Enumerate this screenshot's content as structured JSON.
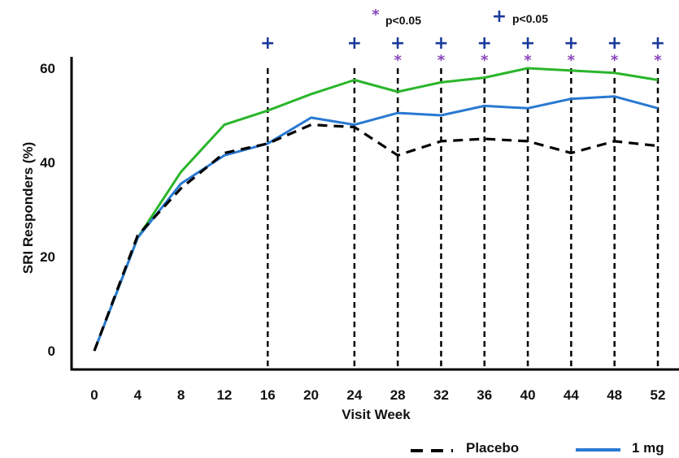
{
  "chart_data": {
    "type": "line",
    "xlabel": "Visit Week",
    "ylabel": "SRI Responders (%)",
    "x": [
      0,
      4,
      8,
      12,
      16,
      20,
      24,
      28,
      32,
      36,
      40,
      44,
      48,
      52
    ],
    "ylim": [
      0,
      60
    ],
    "xticks": [
      "0",
      "4",
      "8",
      "12",
      "16",
      "20",
      "24",
      "28",
      "32",
      "36",
      "40",
      "44",
      "48",
      "52"
    ],
    "yticks": [
      "0",
      "20",
      "40",
      "60"
    ],
    "grid": false,
    "series": [
      {
        "name": "Placebo",
        "style": "dashed",
        "color": "#000000",
        "values": [
          0,
          24.5,
          34.5,
          42,
          44,
          48,
          47.5,
          41.5,
          44.5,
          45,
          44.5,
          42,
          44.5,
          43.5
        ]
      },
      {
        "name": "1 mg",
        "style": "solid",
        "color": "#2979d2",
        "values": [
          0,
          24,
          35.5,
          41.5,
          44,
          49.5,
          48,
          50.5,
          50,
          52,
          51.5,
          53.5,
          54,
          51.5
        ]
      },
      {
        "style": "solid",
        "color": "#2ab52a",
        "values": [
          0,
          24,
          38,
          48,
          51,
          54.5,
          57.5,
          55,
          57,
          58,
          60,
          59.5,
          59,
          57.5
        ]
      }
    ],
    "vlines_x": [
      16,
      24,
      28,
      32,
      36,
      40,
      44,
      48,
      52
    ],
    "annotations": {
      "plus_weeks": [
        16,
        24,
        28,
        32,
        36,
        40,
        44,
        48,
        52
      ],
      "star_weeks": [
        28,
        32,
        36,
        40,
        44,
        48,
        52
      ],
      "star_symbol": "*",
      "star_label": "p<0.05",
      "plus_symbol": "+",
      "plus_label": "p<0.05",
      "star_color": "#8844bb",
      "plus_color": "#1a3a9a"
    },
    "legend": {
      "position": "bottom"
    }
  }
}
